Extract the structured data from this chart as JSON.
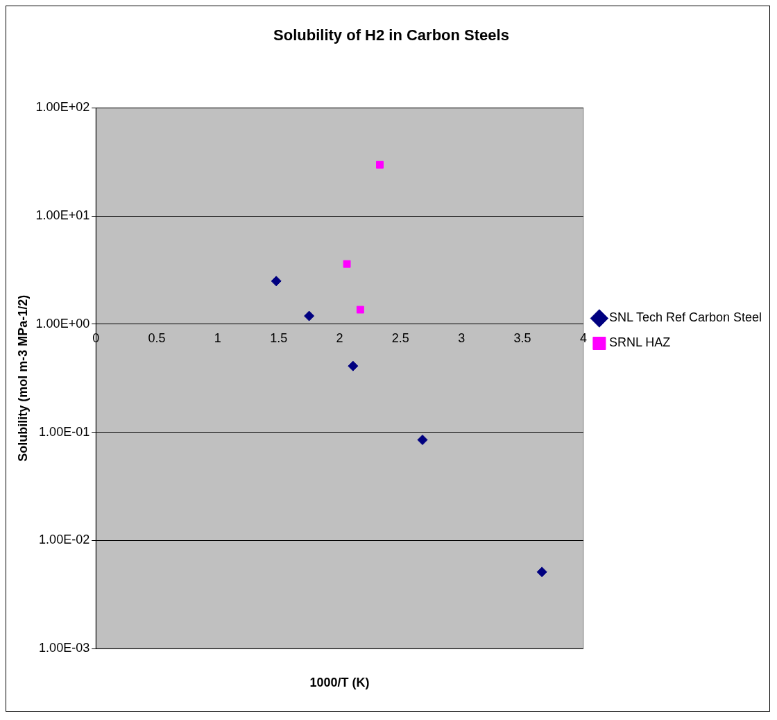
{
  "chart_data": {
    "type": "scatter",
    "title": "Solubility of H2 in Carbon Steels",
    "xlabel": "1000/T (K)",
    "ylabel": "Solubility (mol m-3 MPa-1/2)",
    "series": [
      {
        "name": "SNL Tech Ref Carbon Steel",
        "color": "#000080",
        "marker": "diamond",
        "x": [
          1.48,
          1.75,
          2.11,
          2.68,
          3.66
        ],
        "values": [
          2.5,
          1.19,
          0.41,
          0.085,
          0.0051
        ]
      },
      {
        "name": "SRNL HAZ",
        "color": "#ff00ff",
        "marker": "square",
        "x": [
          2.06,
          2.17,
          2.33
        ],
        "values": [
          3.6,
          1.36,
          29.8
        ]
      }
    ],
    "xlim": [
      0,
      4
    ],
    "xticks": [
      0,
      0.5,
      1,
      1.5,
      2,
      2.5,
      3,
      3.5,
      4
    ],
    "ylim": [
      0.001,
      100
    ],
    "yticks": [
      {
        "value": 0.001,
        "label": "1.00E-03"
      },
      {
        "value": 0.01,
        "label": "1.00E-02"
      },
      {
        "value": 0.1,
        "label": "1.00E-01"
      },
      {
        "value": 1,
        "label": "1.00E+00"
      },
      {
        "value": 10,
        "label": "1.00E+01"
      },
      {
        "value": 100,
        "label": "1.00E+02"
      }
    ],
    "log": "y",
    "grid": "y",
    "legend": "right"
  }
}
